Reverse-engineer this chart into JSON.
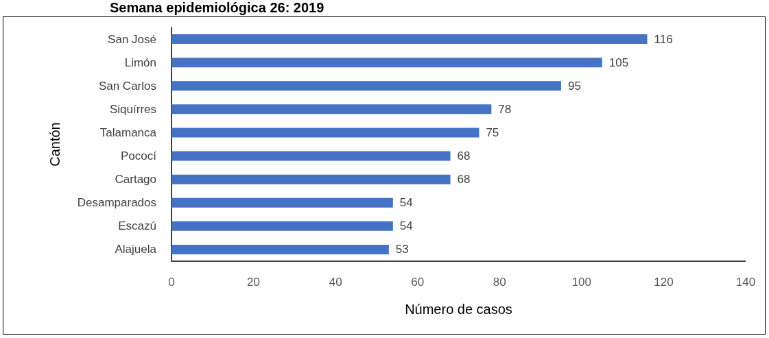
{
  "chart_data": {
    "type": "bar",
    "orientation": "horizontal",
    "title": "Semana epidemiológica 26: 2019",
    "categories": [
      "San José",
      "Limón",
      "San Carlos",
      "Siquírres",
      "Talamanca",
      "Pococí",
      "Cartago",
      "Desamparados",
      "Escazú",
      "Alajuela"
    ],
    "values": [
      116,
      105,
      95,
      78,
      75,
      68,
      68,
      54,
      54,
      53
    ],
    "color": "#4472c4",
    "xlim": [
      0,
      140
    ],
    "xticks": [
      0,
      20,
      40,
      60,
      80,
      100,
      120,
      140
    ],
    "xlabel": "Número de casos",
    "ylabel": "Cantón",
    "data_labels": true,
    "grid": false
  }
}
